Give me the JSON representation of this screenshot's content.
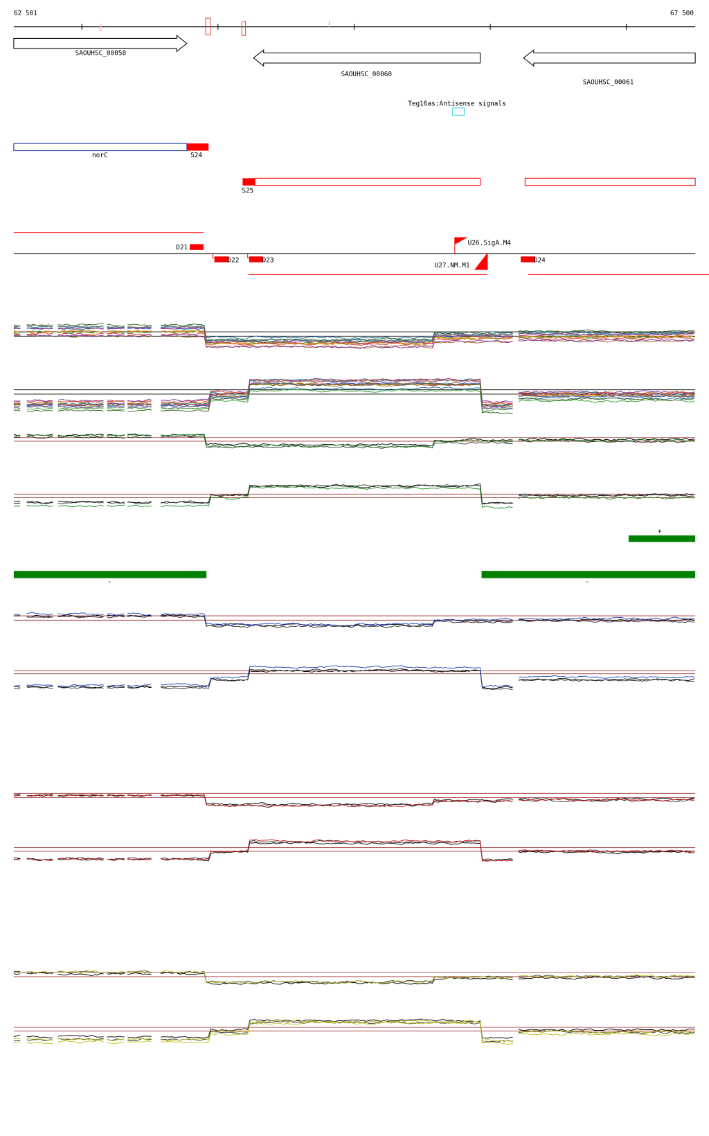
{
  "ruler": {
    "start": "62 501",
    "end": "67 500"
  },
  "genes": [
    "SAOUHSC_00058",
    "SAOUHSC_00060",
    "SAOUHSC_00061"
  ],
  "annotation": "Teg16as:Antisense signals",
  "features": {
    "norC": "norC",
    "segments": [
      "S24",
      "S25"
    ],
    "d": [
      "D21",
      "D22",
      "D23",
      "D24"
    ],
    "u": [
      "U26.SigA.M4",
      "U27.NM.M1"
    ]
  },
  "strands": [
    "+",
    "-",
    "-"
  ]
}
